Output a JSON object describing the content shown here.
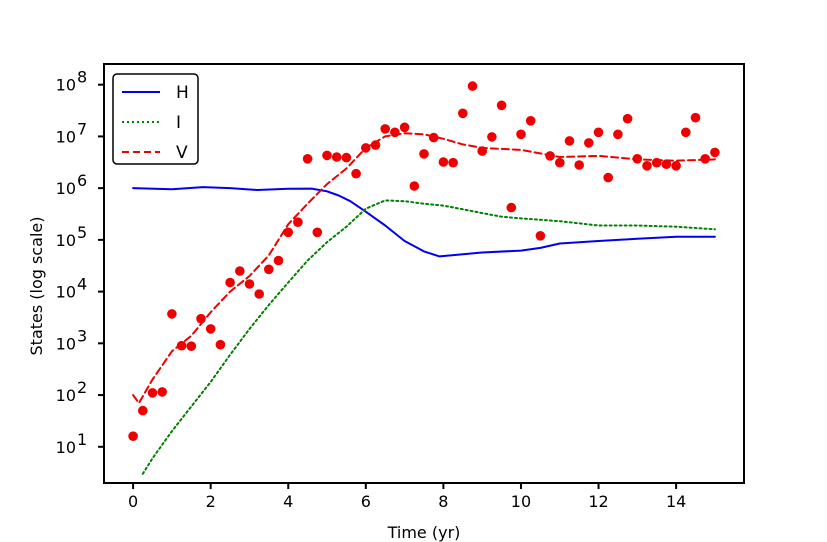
{
  "chart_data": {
    "type": "line",
    "xlabel": "Time (yr)",
    "ylabel": "States (log scale)",
    "xlim": [
      -0.75,
      15.75
    ],
    "ylim_log10": [
      0.3,
      8.4
    ],
    "yscale": "log",
    "grid": false,
    "legend_position": "top-left",
    "x_ticks": [
      0,
      2,
      4,
      6,
      8,
      10,
      12,
      14
    ],
    "x_tick_labels": [
      "0",
      "2",
      "4",
      "6",
      "8",
      "10",
      "12",
      "14"
    ],
    "y_ticks_log10": [
      1,
      2,
      3,
      4,
      5,
      6,
      7,
      8
    ],
    "y_tick_labels": [
      {
        "base": "10",
        "exp": "1"
      },
      {
        "base": "10",
        "exp": "2"
      },
      {
        "base": "10",
        "exp": "3"
      },
      {
        "base": "10",
        "exp": "4"
      },
      {
        "base": "10",
        "exp": "5"
      },
      {
        "base": "10",
        "exp": "6"
      },
      {
        "base": "10",
        "exp": "7"
      },
      {
        "base": "10",
        "exp": "8"
      }
    ],
    "series": [
      {
        "name": "H",
        "color": "#0000ee",
        "style": "solid",
        "x": [
          0,
          1,
          1.8,
          2.5,
          3.2,
          4,
          4.6,
          5.0,
          5.3,
          5.6,
          6.0,
          6.5,
          7.0,
          7.5,
          7.9,
          8.4,
          9.0,
          10.0,
          10.5,
          11.0,
          12.0,
          12.5,
          13.0,
          14.0,
          15.0
        ],
        "y": [
          1000000,
          950000,
          1050000,
          1000000,
          920000,
          970000,
          980000,
          870000,
          720000,
          560000,
          350000,
          190000,
          95000,
          60000,
          48000,
          52000,
          57000,
          62000,
          70000,
          85000,
          95000,
          100000,
          105000,
          115000,
          115000
        ]
      },
      {
        "name": "I",
        "color": "#008000",
        "style": "dotted",
        "x": [
          0.25,
          0.5,
          1,
          1.5,
          2,
          2.5,
          3,
          3.5,
          4,
          4.5,
          5,
          5.5,
          6,
          6.5,
          7,
          7.5,
          8,
          8.5,
          9,
          9.5,
          10,
          11,
          12,
          13,
          14,
          15
        ],
        "y": [
          3,
          6,
          20,
          60,
          180,
          600,
          1900,
          5500,
          15000,
          40000,
          90000,
          180000,
          400000,
          580000,
          560000,
          500000,
          460000,
          390000,
          330000,
          280000,
          260000,
          230000,
          190000,
          190000,
          180000,
          160000
        ]
      },
      {
        "name": "V",
        "color": "#ee0000",
        "style": "dashed",
        "x": [
          0,
          0.15,
          0.5,
          1,
          1.5,
          2,
          2.5,
          3,
          3.5,
          4,
          4.5,
          5,
          5.5,
          6,
          6.5,
          7,
          7.5,
          8,
          8.5,
          9,
          10,
          11,
          12,
          13,
          14,
          15
        ],
        "y": [
          100,
          70,
          200,
          700,
          1400,
          4000,
          10000,
          20000,
          50000,
          200000,
          500000,
          1200000,
          2400000,
          6000000,
          10000000,
          11500000,
          11000000,
          9000000,
          7000000,
          6000000,
          5500000,
          4000000,
          4200000,
          3600000,
          3400000,
          3600000
        ]
      }
    ],
    "scatter": {
      "color": "#ee0000",
      "x": [
        0,
        0.25,
        0.5,
        0.75,
        1,
        1.25,
        1.5,
        1.75,
        2,
        2.25,
        2.5,
        2.75,
        3,
        3.25,
        3.5,
        3.75,
        4,
        4.25,
        4.5,
        4.75,
        5,
        5.25,
        5.5,
        5.75,
        6,
        6.25,
        6.5,
        6.75,
        7,
        7.25,
        7.5,
        7.75,
        8,
        8.25,
        8.5,
        8.75,
        9,
        9.25,
        9.5,
        9.75,
        10,
        10.25,
        10.5,
        10.75,
        11,
        11.25,
        11.5,
        11.75,
        12,
        12.25,
        12.5,
        12.75,
        13,
        13.25,
        13.5,
        13.75,
        14,
        14.25,
        14.5,
        14.75,
        15
      ],
      "y": [
        16,
        50,
        110,
        115,
        3700,
        900,
        880,
        3000,
        1900,
        940,
        15000,
        25000,
        14000,
        9000,
        27000,
        40000,
        140000,
        220000,
        3700000,
        140000,
        4300000,
        4000000,
        3900000,
        1900000,
        6000000,
        6800000,
        14000000,
        12000000,
        15000000,
        1100000,
        4600000,
        9500000,
        3200000,
        3100000,
        28000000,
        94000000,
        5200000,
        9800000,
        40000000,
        420000,
        11000000,
        20000000,
        120000,
        4200000,
        3100000,
        8200000,
        2800000,
        7500000,
        12000000,
        1600000,
        11000000,
        22000000,
        3700000,
        2700000,
        3100000,
        2900000,
        2700000,
        12000000,
        23000000,
        3700000,
        4900000
      ]
    }
  }
}
